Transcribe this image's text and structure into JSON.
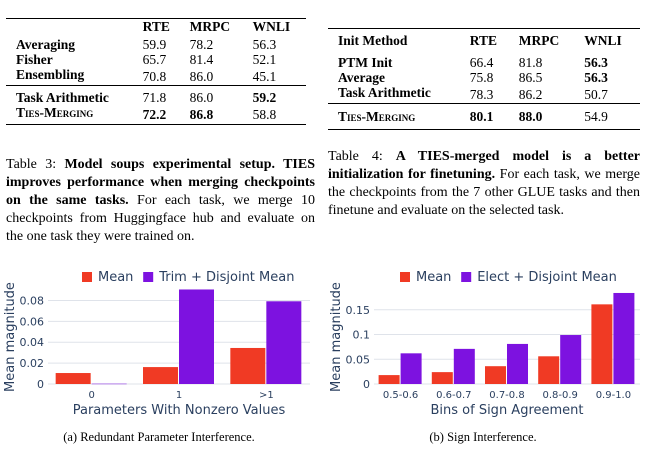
{
  "table3": {
    "headers": [
      "",
      "RTE",
      "MRPC",
      "WNLI"
    ],
    "rows": [
      {
        "method": "Averaging",
        "rte": "59.9",
        "mrpc": "78.2",
        "wnli": "56.3"
      },
      {
        "method": "Fisher",
        "rte": "65.7",
        "mrpc": "81.4",
        "wnli": "52.1"
      },
      {
        "method": "Ensembling",
        "rte": "70.8",
        "mrpc": "86.0",
        "wnli": "45.1"
      },
      {
        "method": "Task Arithmetic",
        "rte": "71.8",
        "mrpc": "86.0",
        "wnli": "59.2"
      },
      {
        "method": "Ties-Merging",
        "rte": "72.2",
        "mrpc": "86.8",
        "wnli": "58.8"
      }
    ],
    "caption_label": "Table 3:",
    "caption_bold": "Model soups experimental setup. TIES improves performance when merging checkpoints on the same tasks.",
    "caption_rest": "For each task, we merge 10 checkpoints from Huggingface hub and evaluate on the one task they were trained on."
  },
  "table4": {
    "headers": [
      "Init Method",
      "RTE",
      "MRPC",
      "WNLI"
    ],
    "rows": [
      {
        "method": "PTM Init",
        "rte": "66.4",
        "mrpc": "81.8",
        "wnli": "56.3"
      },
      {
        "method": "Average",
        "rte": "75.8",
        "mrpc": "86.5",
        "wnli": "56.3"
      },
      {
        "method": "Task Arithmetic",
        "rte": "78.3",
        "mrpc": "86.2",
        "wnli": "50.7"
      },
      {
        "method": "Ties-Merging",
        "rte": "80.1",
        "mrpc": "88.0",
        "wnli": "54.9"
      }
    ],
    "caption_label": "Table 4:",
    "caption_bold": "A TIES-merged model is a better initialization for finetuning.",
    "caption_rest": "For each task, we merge the checkpoints from the 7 other GLUE tasks and then finetune and evaluate on the selected task."
  },
  "colors": {
    "mean": "#f03a24",
    "second": "#7d12e0",
    "axis": "#2a3f5f"
  },
  "chart_data": [
    {
      "type": "bar",
      "title": "",
      "categories": [
        "0",
        "1",
        ">1"
      ],
      "series": [
        {
          "name": "Mean",
          "values": [
            0.0105,
            0.0162,
            0.0345
          ]
        },
        {
          "name": "Trim + Disjoint Mean",
          "values": [
            0.0003,
            0.0905,
            0.0792
          ]
        }
      ],
      "xlabel": "Parameters With Nonzero Values",
      "ylabel": "Mean magnitude",
      "ylim": [
        0,
        0.09
      ],
      "yticks": [
        "0",
        "0.02",
        "0.04",
        "0.06",
        "0.08"
      ],
      "ytick_values": [
        0,
        0.02,
        0.04,
        0.06,
        0.08
      ],
      "subcaption": "(a)  Redundant Parameter Interference."
    },
    {
      "type": "bar",
      "title": "",
      "categories": [
        "0.5-0.6",
        "0.6-0.7",
        "0.7-0.8",
        "0.8-0.9",
        "0.9-1.0"
      ],
      "series": [
        {
          "name": "Mean",
          "values": [
            0.018,
            0.024,
            0.036,
            0.056,
            0.161
          ]
        },
        {
          "name": "Elect + Disjoint Mean",
          "values": [
            0.062,
            0.071,
            0.081,
            0.099,
            0.184
          ]
        }
      ],
      "xlabel": "Bins of Sign Agreement",
      "ylabel": "Mean magnitude",
      "ylim": [
        0,
        0.19
      ],
      "yticks": [
        "0",
        "0.05",
        "0.1",
        "0.15"
      ],
      "ytick_values": [
        0,
        0.05,
        0.1,
        0.15
      ],
      "subcaption": "(b)  Sign Interference."
    }
  ]
}
